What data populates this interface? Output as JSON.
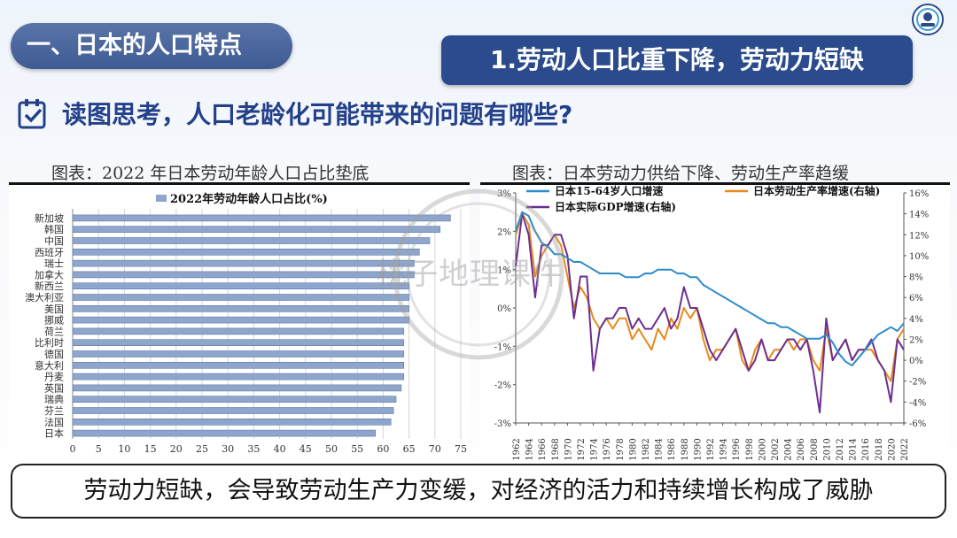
{
  "header": {
    "section_title": "一、日本的人口特点",
    "subtitle": "1.劳动人口比重下降，劳动力短缺"
  },
  "question": {
    "icon": "checkbox-icon",
    "text": "读图思考，人口老龄化可能带来的问题有哪些?"
  },
  "left_caption": "图表：2022 年日本劳动年龄人口占比垫底",
  "right_caption": "图表：日本劳动力供给下降、劳动生产率趋缓",
  "watermark": "桃子地理课件",
  "footer": "劳动力短缺，会导致劳动生产力变缓，对经济的活力和持续增长构成了威胁",
  "colors": {
    "accent": "#2b4b8c",
    "bar": "#8fa6cc",
    "blue_line": "#2e8bc9",
    "orange_line": "#e88a1a",
    "purple_line": "#6b2f8f"
  },
  "chart_data": [
    {
      "type": "bar",
      "orientation": "horizontal",
      "title": "2022年劳动年龄人口占比(%)",
      "legend": "2022年劳动年龄人口占比(%)",
      "categories": [
        "新加坡",
        "韩国",
        "中国",
        "西班牙",
        "瑞士",
        "加拿大",
        "新西兰",
        "澳大利亚",
        "美国",
        "挪威",
        "荷兰",
        "比利时",
        "德国",
        "意大利",
        "丹麦",
        "英国",
        "瑞典",
        "芬兰",
        "法国",
        "日本"
      ],
      "values": [
        73,
        71,
        69,
        67,
        66,
        66,
        65,
        65,
        65,
        65,
        64,
        64,
        64,
        64,
        64,
        63.5,
        62.5,
        62,
        61.5,
        58.5
      ],
      "xlim": [
        0,
        75
      ],
      "xticks": [
        0,
        5,
        10,
        15,
        20,
        25,
        30,
        35,
        40,
        45,
        50,
        55,
        60,
        65,
        70,
        75
      ],
      "grid": true
    },
    {
      "type": "line",
      "x": [
        1962,
        1963,
        1964,
        1965,
        1966,
        1967,
        1968,
        1969,
        1970,
        1971,
        1972,
        1973,
        1974,
        1975,
        1976,
        1977,
        1978,
        1979,
        1980,
        1981,
        1982,
        1983,
        1984,
        1985,
        1986,
        1987,
        1988,
        1989,
        1990,
        1991,
        1992,
        1993,
        1994,
        1995,
        1996,
        1997,
        1998,
        1999,
        2000,
        2001,
        2002,
        2003,
        2004,
        2005,
        2006,
        2007,
        2008,
        2009,
        2010,
        2011,
        2012,
        2013,
        2014,
        2015,
        2016,
        2017,
        2018,
        2019,
        2020,
        2021,
        2022
      ],
      "xticks": [
        "1962",
        "1964",
        "1966",
        "1968",
        "1970",
        "1972",
        "1974",
        "1976",
        "1978",
        "1980",
        "1982",
        "1984",
        "1986",
        "1988",
        "1990",
        "1992",
        "1994",
        "1996",
        "1998",
        "2000",
        "2002",
        "2004",
        "2006",
        "2008",
        "2010",
        "2012",
        "2014",
        "2016",
        "2018",
        "2020",
        "2022"
      ],
      "y_left": {
        "ticks": [
          "3%",
          "2%",
          "1%",
          "0%",
          "-1%",
          "-2%",
          "-3%"
        ],
        "range": [
          -3,
          3
        ]
      },
      "y_right": {
        "ticks": [
          "16%",
          "14%",
          "12%",
          "10%",
          "8%",
          "6%",
          "4%",
          "2%",
          "0%",
          "-2%",
          "-4%",
          "-6%"
        ],
        "range": [
          -6,
          16
        ]
      },
      "series": [
        {
          "name": "日本15-64岁人口增速",
          "axis": "left",
          "values": [
            2.0,
            2.5,
            2.4,
            2.0,
            1.7,
            1.6,
            1.4,
            1.4,
            1.3,
            1.2,
            1.2,
            1.1,
            1.0,
            0.9,
            0.9,
            0.9,
            0.9,
            0.8,
            0.8,
            0.8,
            0.9,
            0.9,
            1.0,
            1.0,
            1.0,
            0.9,
            0.9,
            0.8,
            0.8,
            0.6,
            0.5,
            0.4,
            0.3,
            0.2,
            0.1,
            0.0,
            -0.1,
            -0.2,
            -0.3,
            -0.4,
            -0.4,
            -0.5,
            -0.5,
            -0.6,
            -0.7,
            -0.8,
            -0.8,
            -0.8,
            -0.7,
            -0.9,
            -1.2,
            -1.4,
            -1.5,
            -1.3,
            -1.1,
            -0.9,
            -0.7,
            -0.6,
            -0.5,
            -0.6,
            -0.4
          ]
        },
        {
          "name": "日本劳动生产率增速(右轴)",
          "axis": "right",
          "values": [
            12,
            14,
            13,
            8,
            10,
            11,
            12,
            11,
            8,
            5,
            7,
            6,
            4,
            3,
            4,
            3,
            4,
            4,
            2,
            3,
            2,
            1,
            3,
            2,
            4,
            3,
            5,
            4,
            5,
            2,
            0,
            1,
            1,
            2,
            3,
            0,
            -1,
            1,
            2,
            0,
            1,
            1,
            2,
            1,
            2,
            2,
            0,
            -1,
            3,
            0,
            1,
            2,
            0,
            1,
            1,
            1,
            0,
            -1,
            -2,
            2,
            3
          ]
        },
        {
          "name": "日本实际GDP增速(右轴)",
          "axis": "right",
          "values": [
            9,
            14,
            12,
            6,
            11,
            11,
            12,
            12,
            10,
            4,
            8,
            8,
            -1,
            3,
            4,
            4,
            5,
            5,
            3,
            4,
            3,
            3,
            4,
            5,
            3,
            4,
            7,
            5,
            5,
            3,
            1,
            0,
            1,
            2,
            3,
            1,
            -1,
            0,
            2,
            0,
            0,
            1,
            2,
            2,
            1,
            2,
            -1,
            -5,
            4,
            0,
            1,
            2,
            0,
            1,
            1,
            2,
            0,
            -1,
            -4,
            2,
            1
          ]
        }
      ],
      "grid": false,
      "legend_position": "top"
    }
  ]
}
